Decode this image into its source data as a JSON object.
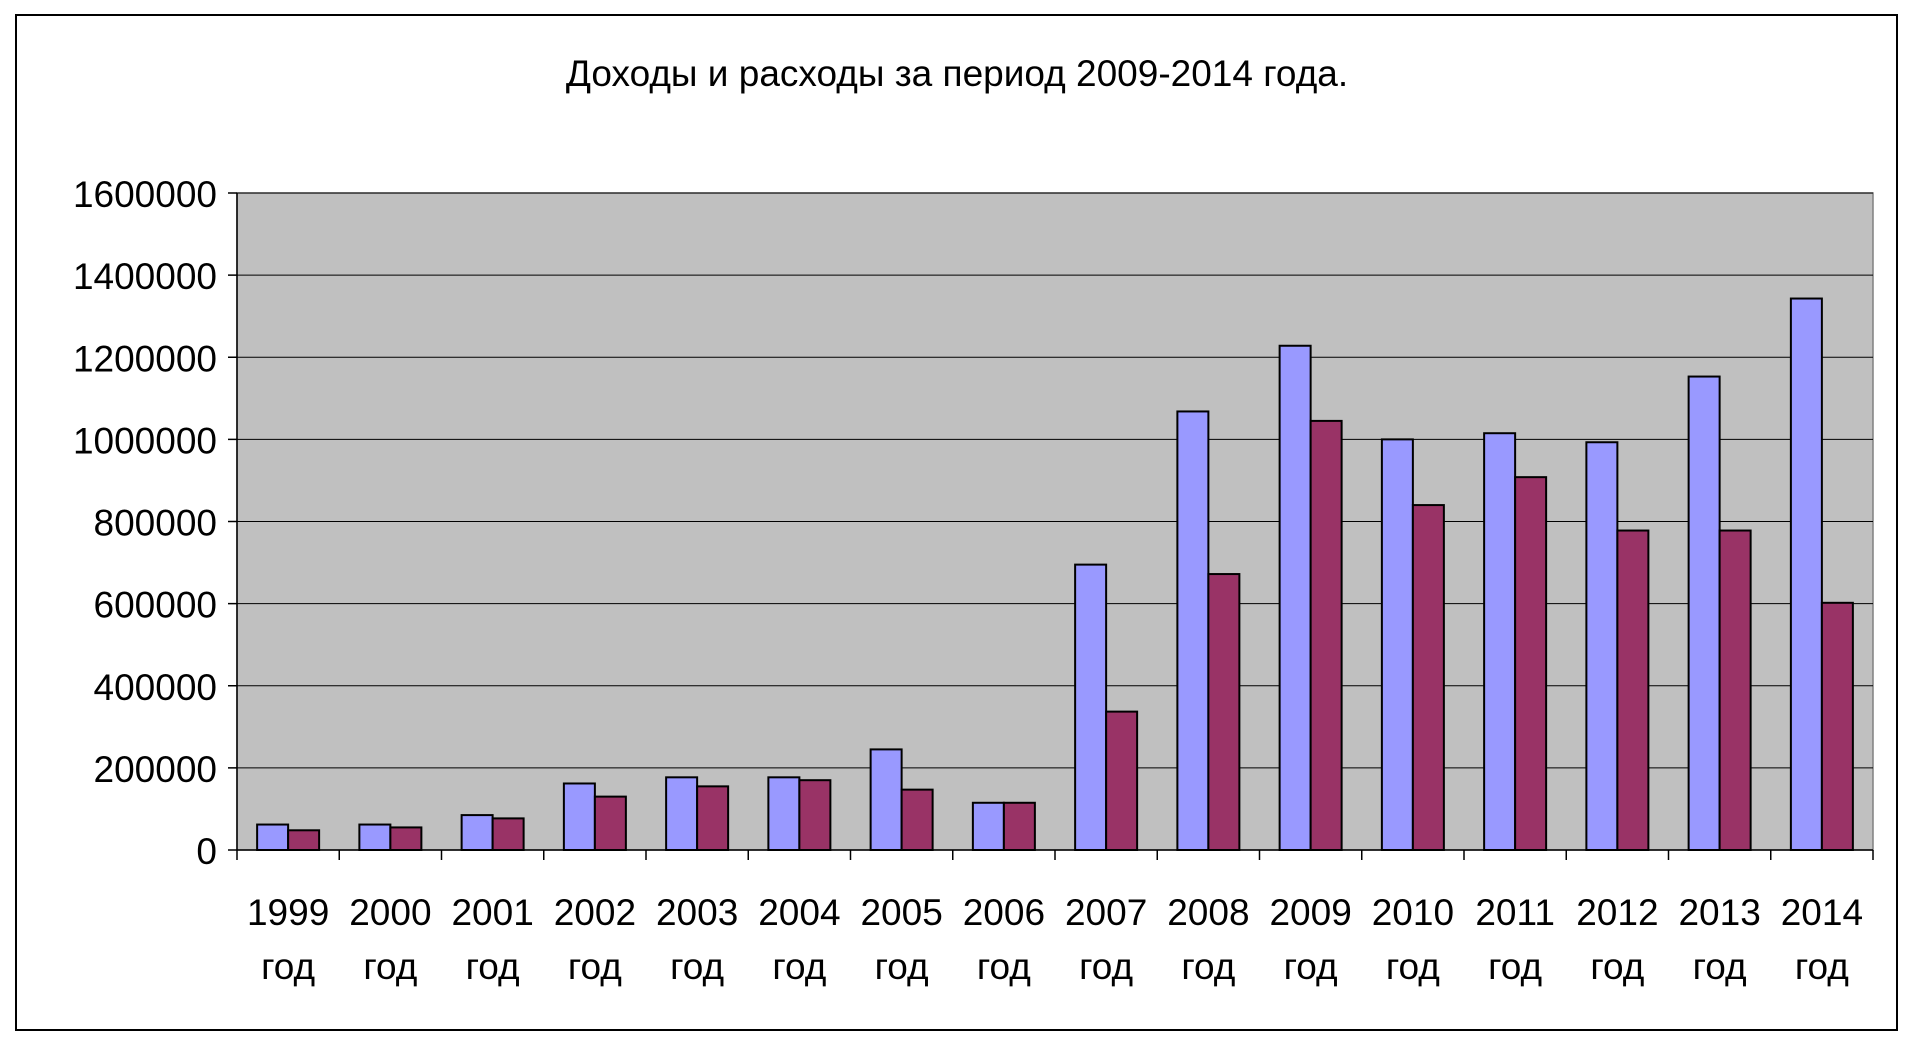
{
  "chart_data": {
    "type": "bar",
    "title": "Доходы и расходы за период 2009-2014 года.",
    "xlabel": "",
    "ylabel": "",
    "ylim": [
      0,
      1600000
    ],
    "yticks": [
      "0",
      "200000",
      "400000",
      "600000",
      "800000",
      "1000000",
      "1200000",
      "1400000",
      "1600000"
    ],
    "ytick_values": [
      0,
      200000,
      400000,
      600000,
      800000,
      1000000,
      1200000,
      1400000,
      1600000
    ],
    "grid": true,
    "legend": "none",
    "categories": [
      [
        "1999",
        "год"
      ],
      [
        "2000",
        "год"
      ],
      [
        "2001",
        "год"
      ],
      [
        "2002",
        "год"
      ],
      [
        "2003",
        "год"
      ],
      [
        "2004",
        "год"
      ],
      [
        "2005",
        "год"
      ],
      [
        "2006",
        "год"
      ],
      [
        "2007",
        "год"
      ],
      [
        "2008",
        "год"
      ],
      [
        "2009",
        "год"
      ],
      [
        "2010",
        "год"
      ],
      [
        "2011",
        "год"
      ],
      [
        "2012",
        "год"
      ],
      [
        "2013",
        "год"
      ],
      [
        "2014",
        "год"
      ]
    ],
    "series": [
      {
        "name": "Доходы",
        "color": "#9999ff",
        "values": [
          62000,
          62000,
          85000,
          162000,
          177000,
          177000,
          245000,
          115000,
          695000,
          1068000,
          1228000,
          1000000,
          1015000,
          993000,
          1153000,
          1343000
        ]
      },
      {
        "name": "Расходы",
        "color": "#993366",
        "values": [
          48000,
          55000,
          77000,
          130000,
          155000,
          170000,
          147000,
          115000,
          337000,
          672000,
          1045000,
          840000,
          908000,
          778000,
          778000,
          602000
        ]
      }
    ],
    "plot_background": "#c0c0c0",
    "gridline_color": "#000000"
  }
}
